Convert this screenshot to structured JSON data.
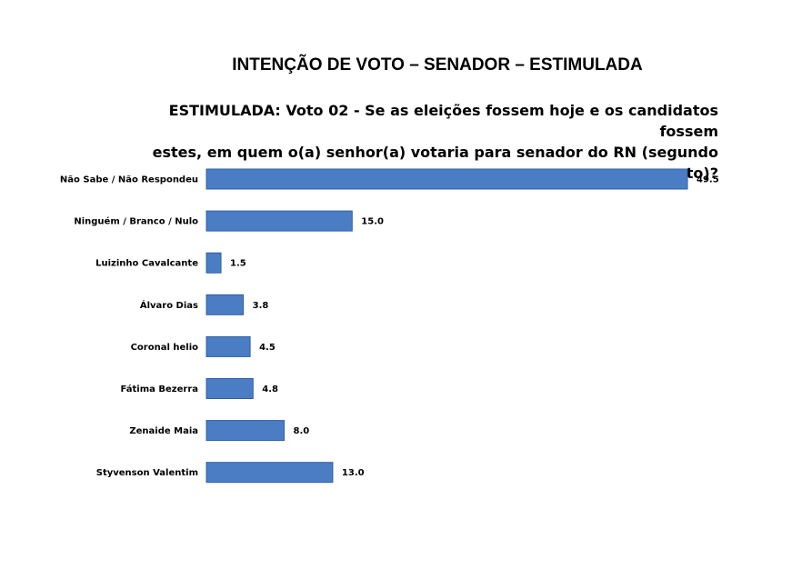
{
  "chart_data": {
    "type": "bar",
    "orientation": "horizontal",
    "title": "INTENÇÃO DE VOTO – SENADOR – ESTIMULADA",
    "subtitle_lines": [
      "ESTIMULADA: Voto 02 - Se as eleições fossem hoje e os candidatos fossem",
      "estes, em quem o(a) senhor(a) votaria para senador do RN (segundo voto)?"
    ],
    "categories": [
      "Não Sabe / Não Respondeu",
      "Ninguém / Branco / Nulo",
      "Luizinho Cavalcante",
      "Álvaro Dias",
      "Coronal helio",
      "Fátima Bezerra",
      "Zenaide Maia",
      "Styvenson Valentim"
    ],
    "values": [
      49.5,
      15.0,
      1.5,
      3.8,
      4.5,
      4.8,
      8.0,
      13.0
    ],
    "value_labels": [
      "49.5",
      "15.0",
      "1.5",
      "3.8",
      "4.5",
      "4.8",
      "8.0",
      "13.0"
    ],
    "bar_color": "#4a7dc4",
    "bar_edge_color": "#2f5fa3",
    "xlim": [
      0,
      49.5
    ],
    "grid": false,
    "legend": "none"
  }
}
